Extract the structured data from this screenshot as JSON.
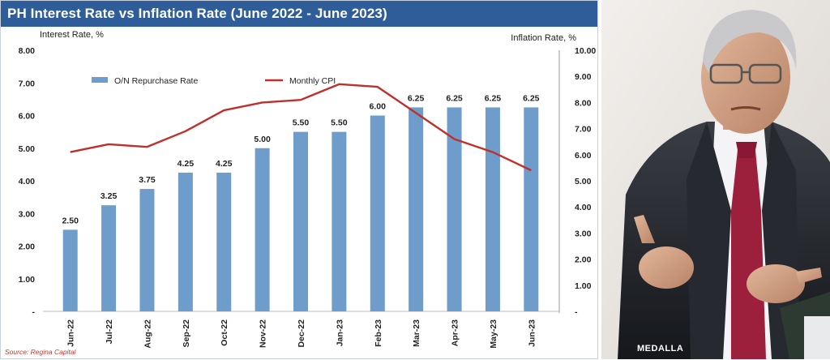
{
  "title": "PH Interest Rate vs Inflation Rate (June 2022 - June 2023)",
  "source": "Source: Regina Capital",
  "photo_caption": "MEDALLA",
  "chart_data": {
    "type": "bar",
    "categories": [
      "Jun-22",
      "Jul-22",
      "Aug-22",
      "Sep-22",
      "Oct-22",
      "Nov-22",
      "Dec-22",
      "Jan-23",
      "Feb-23",
      "Mar-23",
      "Apr-23",
      "May-23",
      "Jun-23"
    ],
    "series": [
      {
        "name": "O/N Repurchase Rate",
        "type": "bar",
        "axis": "left",
        "color": "#6e9ccb",
        "values": [
          2.5,
          3.25,
          3.75,
          4.25,
          4.25,
          5.0,
          5.5,
          5.5,
          6.0,
          6.25,
          6.25,
          6.25,
          6.25
        ],
        "labels": [
          "2.50",
          "3.25",
          "3.75",
          "4.25",
          "4.25",
          "5.00",
          "5.50",
          "5.50",
          "6.00",
          "6.25",
          "6.25",
          "6.25",
          "6.25"
        ]
      },
      {
        "name": "Monthly CPI",
        "type": "line",
        "axis": "right",
        "color": "#c0302b",
        "values": [
          6.1,
          6.4,
          6.3,
          6.9,
          7.7,
          8.0,
          8.1,
          8.7,
          8.6,
          7.6,
          6.6,
          6.1,
          5.4
        ]
      }
    ],
    "left_axis": {
      "label": "Interest Rate, %",
      "range": [
        0,
        8
      ],
      "ticks": [
        "-",
        "1.00",
        "2.00",
        "3.00",
        "4.00",
        "5.00",
        "6.00",
        "7.00",
        "8.00"
      ]
    },
    "right_axis": {
      "label": "Inflation Rate, %",
      "range": [
        0,
        10
      ],
      "ticks": [
        "-",
        "1.00",
        "2.00",
        "3.00",
        "4.00",
        "5.00",
        "6.00",
        "7.00",
        "8.00",
        "9.00",
        "10.00"
      ]
    },
    "legend_placement": "top-left",
    "grid": false
  },
  "colors": {
    "title_bar": "#2f5d9a",
    "bar": "#6e9ccb",
    "line": "#c0302b"
  }
}
